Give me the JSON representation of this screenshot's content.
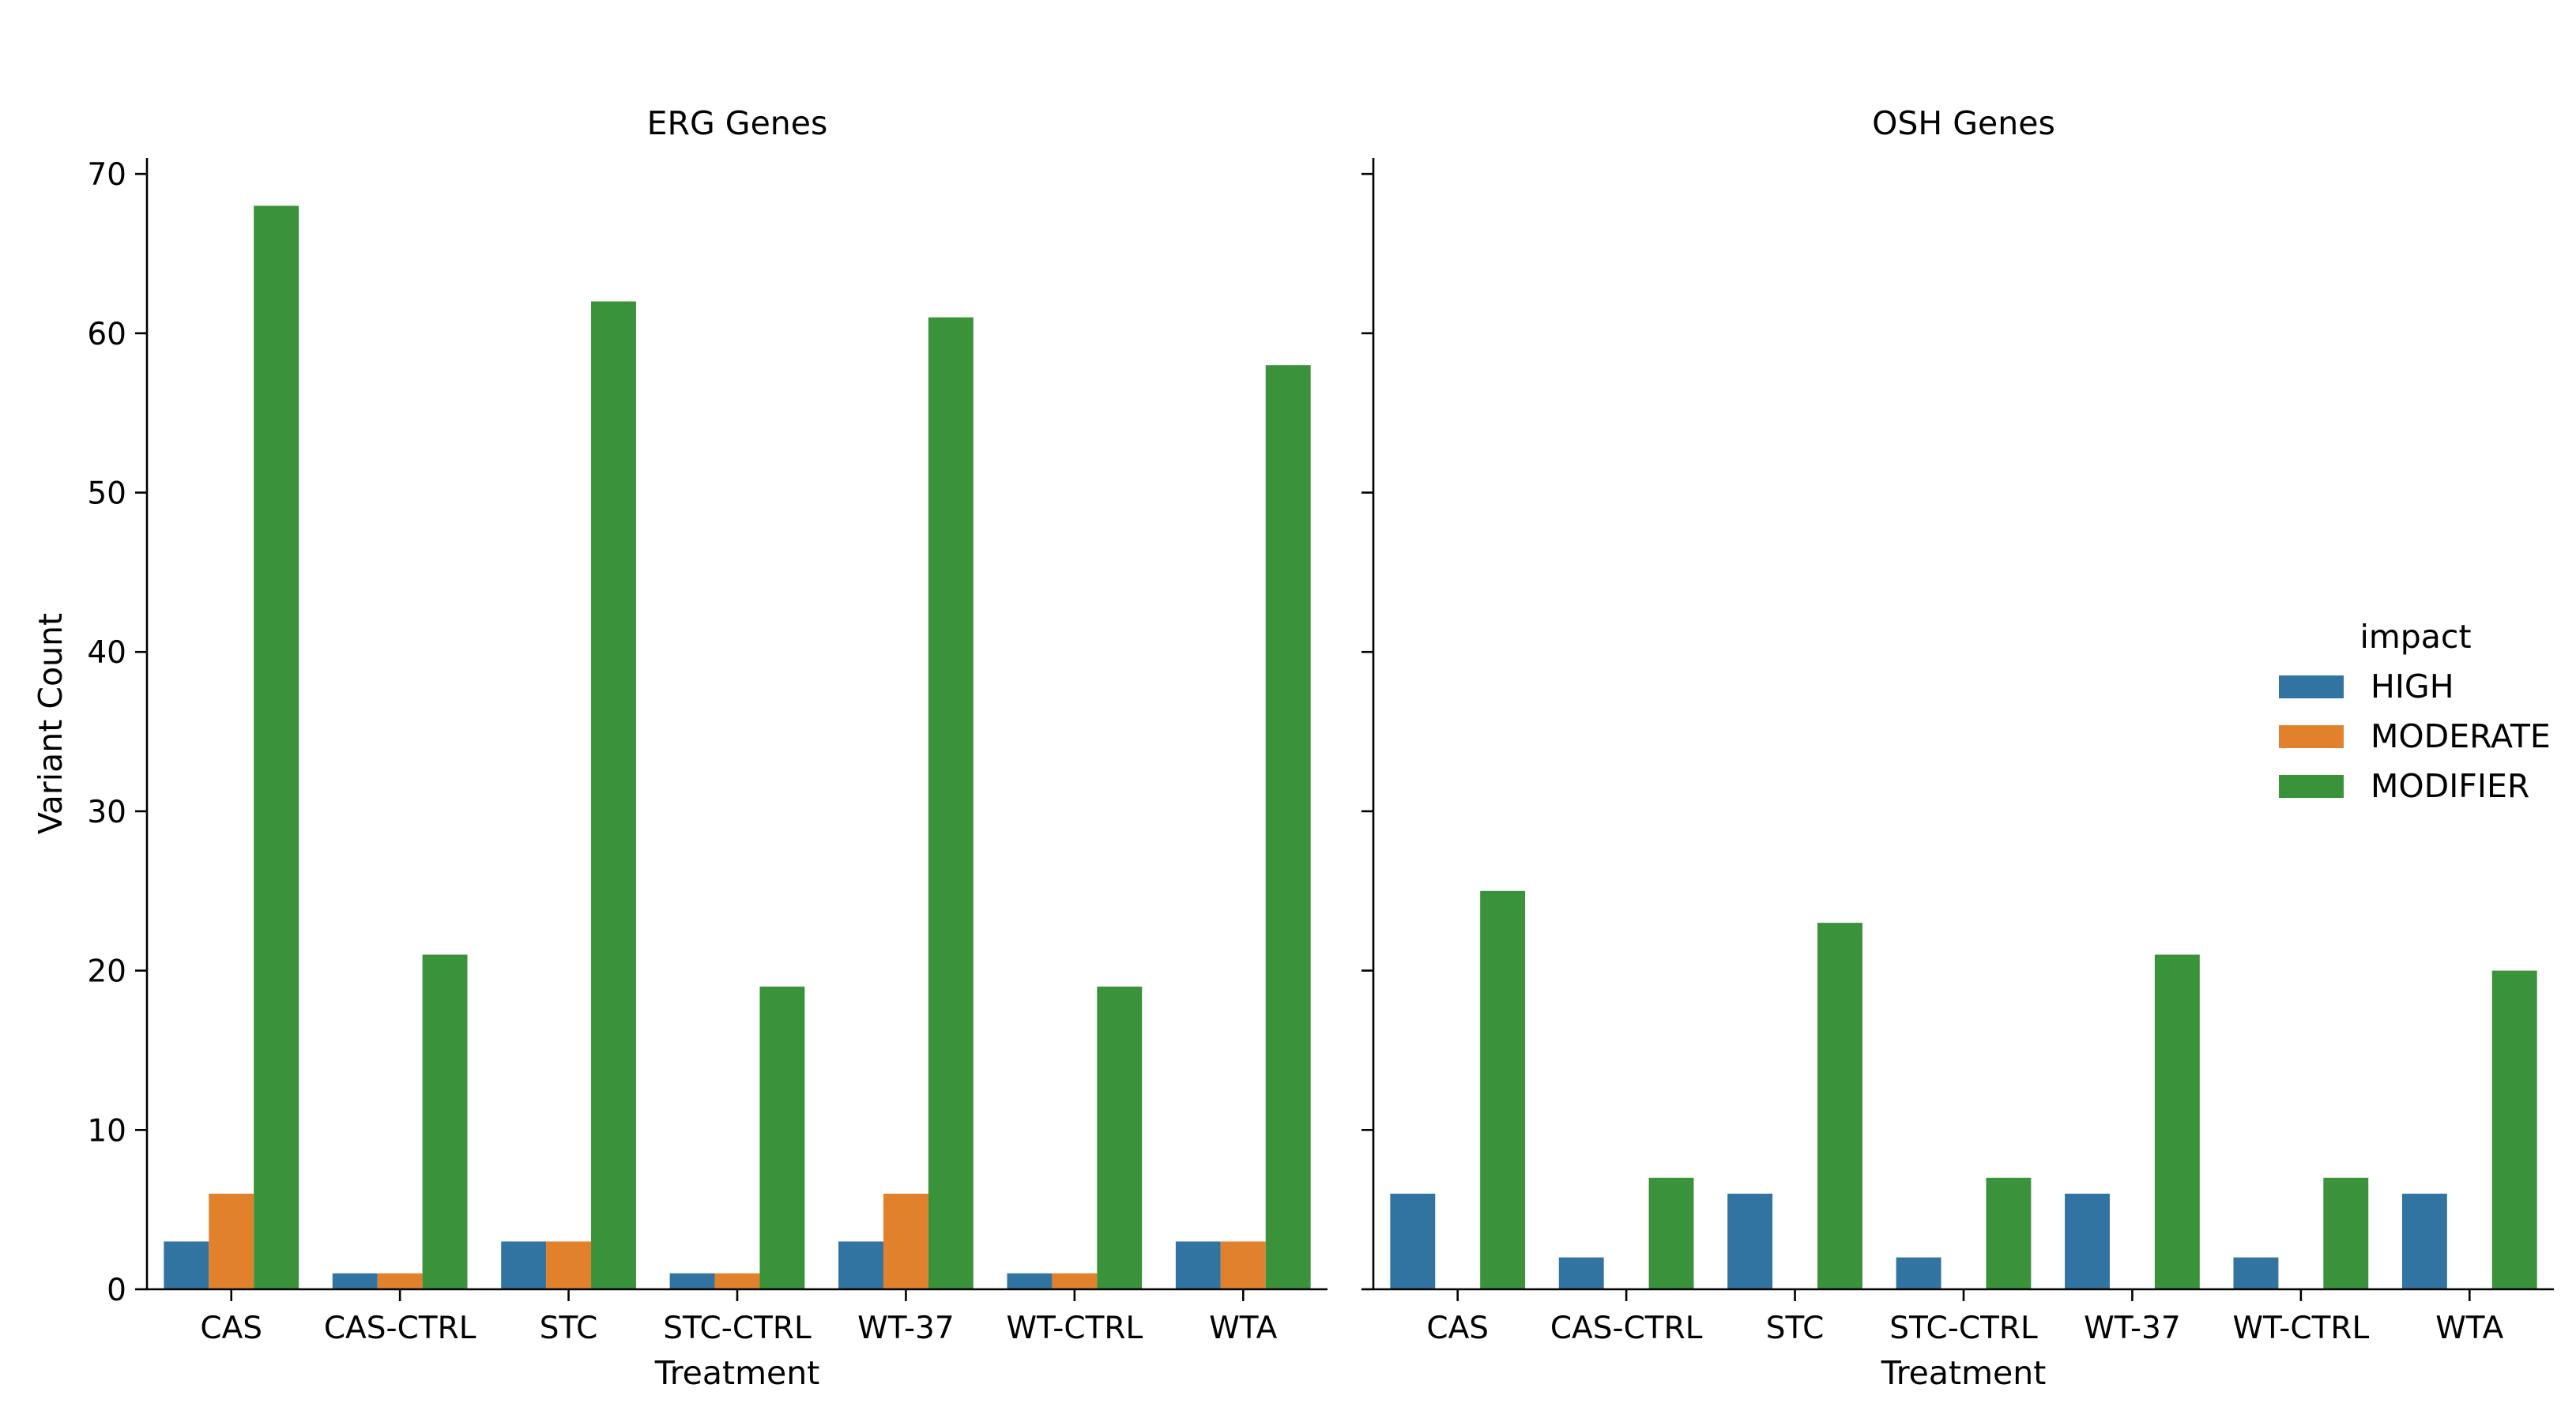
{
  "chart_data": {
    "type": "bar",
    "ylabel": "Variant Count",
    "xlabel": "Treatment",
    "ylim": [
      0,
      71
    ],
    "yticks": [
      0,
      10,
      20,
      30,
      40,
      50,
      60,
      70
    ],
    "categories": [
      "CAS",
      "CAS-CTRL",
      "STC",
      "STC-CTRL",
      "WT-37",
      "WT-CTRL",
      "WTA"
    ],
    "legend": {
      "title": "impact",
      "placement": "center-right",
      "entries": [
        {
          "name": "HIGH",
          "color": "#3274a1"
        },
        {
          "name": "MODERATE",
          "color": "#e1812c"
        },
        {
          "name": "MODIFIER",
          "color": "#3a923a"
        }
      ]
    },
    "panels": [
      {
        "title": "ERG Genes",
        "series": [
          {
            "name": "HIGH",
            "values": [
              3,
              1,
              3,
              1,
              3,
              1,
              3
            ]
          },
          {
            "name": "MODERATE",
            "values": [
              6,
              1,
              3,
              1,
              6,
              1,
              3
            ]
          },
          {
            "name": "MODIFIER",
            "values": [
              68,
              21,
              62,
              19,
              61,
              19,
              58
            ]
          }
        ]
      },
      {
        "title": "OSH Genes",
        "series": [
          {
            "name": "HIGH",
            "values": [
              6,
              2,
              6,
              2,
              6,
              2,
              6
            ]
          },
          {
            "name": "MODERATE",
            "values": [
              0,
              0,
              0,
              0,
              0,
              0,
              0
            ]
          },
          {
            "name": "MODIFIER",
            "values": [
              25,
              7,
              23,
              7,
              21,
              7,
              20
            ]
          }
        ]
      }
    ]
  }
}
